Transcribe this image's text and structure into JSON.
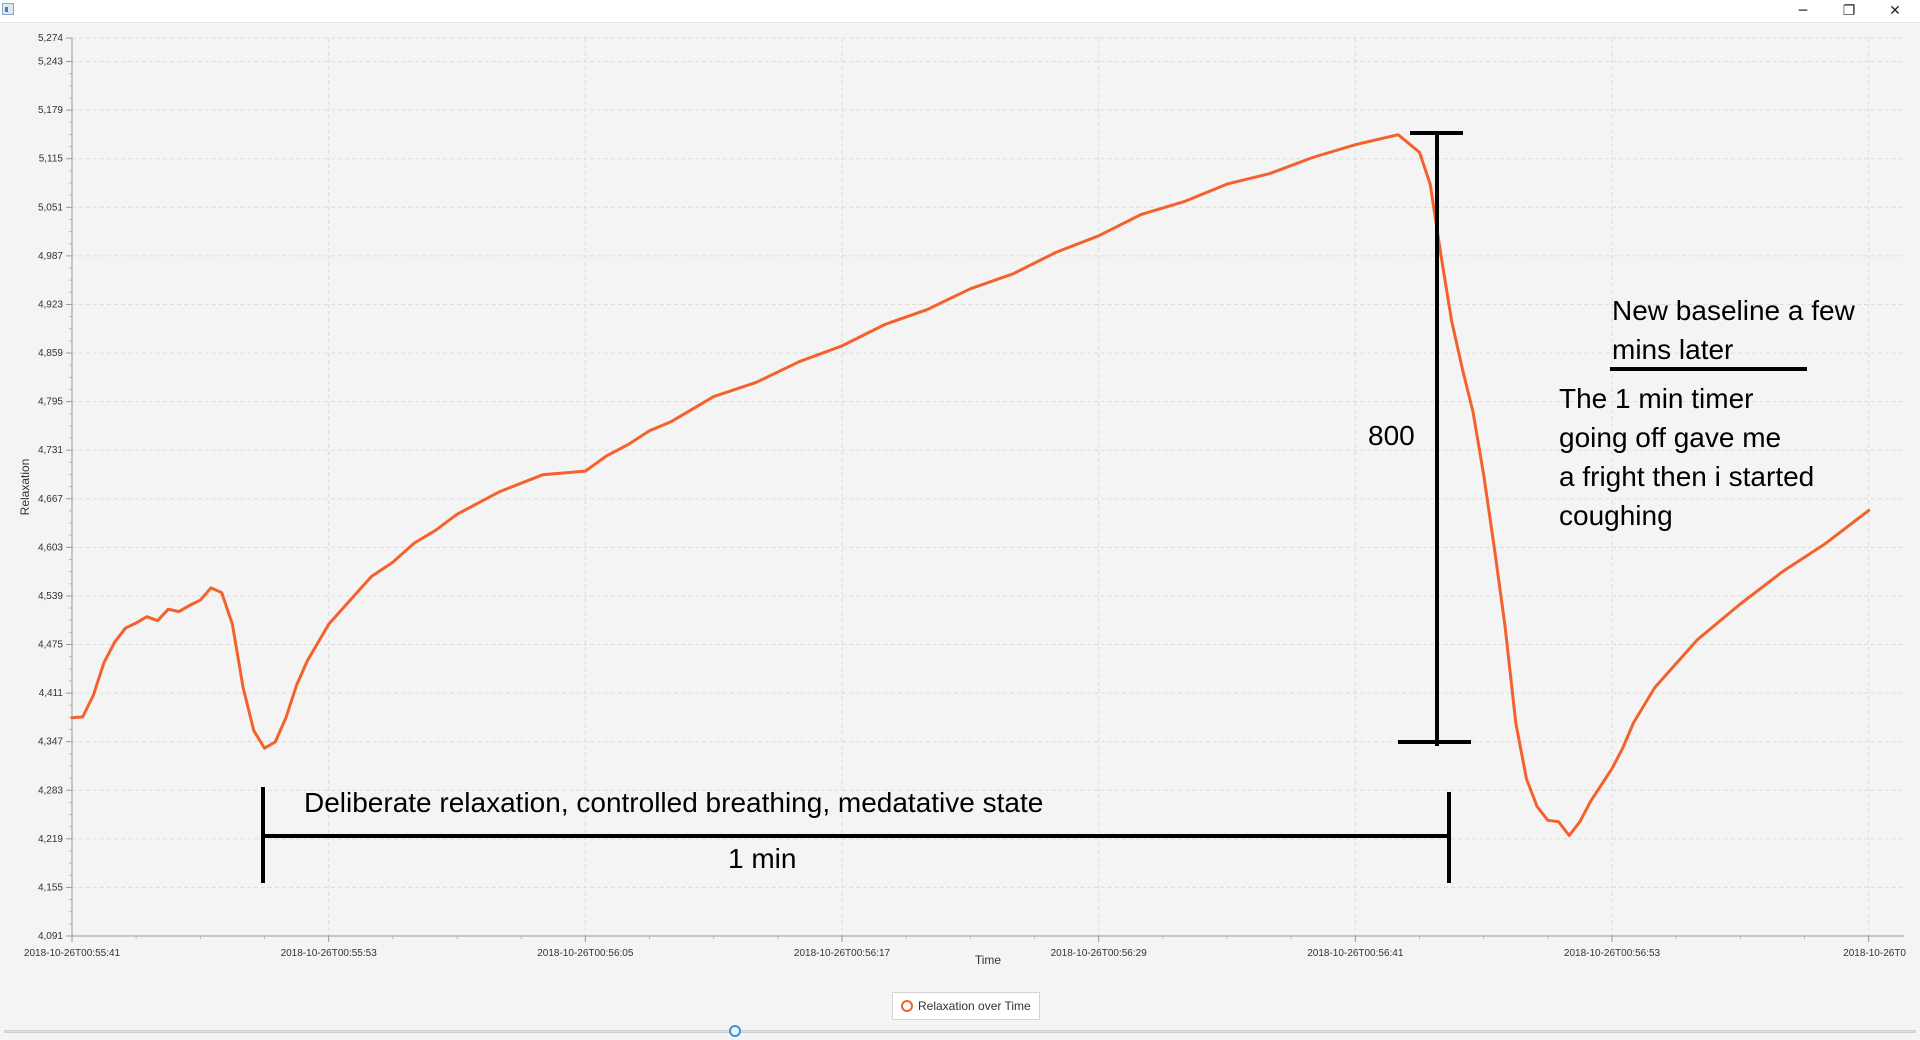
{
  "window": {
    "minimize_glyph": "─",
    "restore_glyph": "❐",
    "close_glyph": "✕"
  },
  "legend": {
    "label": "Relaxation over Time"
  },
  "chart_data": {
    "type": "line",
    "xlabel": "Time",
    "ylabel": "Relaxation",
    "ylim": [
      4091,
      5274
    ],
    "y_ticks": [
      "4,091",
      "4,155",
      "4,219",
      "4,283",
      "4,347",
      "4,411",
      "4,475",
      "4,539",
      "4,603",
      "4,667",
      "4,731",
      "4,795",
      "4,859",
      "4,923",
      "4,987",
      "5,051",
      "5,115",
      "5,179",
      "5,243",
      "5,274"
    ],
    "x_range_seconds": [
      0,
      72
    ],
    "x_ticks": [
      {
        "label": "2018-10-26T00:55:41",
        "t": 0
      },
      {
        "label": "2018-10-26T00:55:53",
        "t": 12
      },
      {
        "label": "2018-10-26T00:56:05",
        "t": 24
      },
      {
        "label": "2018-10-26T00:56:17",
        "t": 36
      },
      {
        "label": "2018-10-26T00:56:29",
        "t": 48
      },
      {
        "label": "2018-10-26T00:56:41",
        "t": 60
      },
      {
        "label": "2018-10-26T00:56:53",
        "t": 72
      },
      {
        "label": "2018-10-26T0",
        "t": 84
      }
    ],
    "grid": true,
    "series": [
      {
        "name": "Relaxation over Time",
        "color": "#f3622d",
        "x": [
          0,
          0.5,
          1,
          1.5,
          2,
          2.5,
          3,
          3.5,
          4,
          4.5,
          5,
          5.5,
          6,
          6.5,
          7,
          7.5,
          8,
          8.5,
          9,
          9.5,
          10,
          10.5,
          11,
          12,
          13,
          14,
          15,
          16,
          17,
          18,
          20,
          22,
          24,
          25,
          26,
          27,
          28,
          30,
          32,
          34,
          36,
          38,
          40,
          42,
          44,
          46,
          48,
          50,
          52,
          54,
          56,
          58,
          60,
          62,
          63,
          63.5,
          64,
          64.5,
          65,
          65.5,
          66,
          66.5,
          67,
          67.5,
          68,
          68.5,
          69,
          69.5,
          70,
          70.5,
          71,
          72,
          72.5,
          73,
          74,
          76,
          78,
          80,
          82,
          84
        ],
        "values": [
          4380,
          4378,
          4410,
          4450,
          4480,
          4495,
          4505,
          4510,
          4508,
          4520,
          4520,
          4525,
          4535,
          4548,
          4545,
          4500,
          4420,
          4360,
          4340,
          4345,
          4380,
          4420,
          4455,
          4500,
          4535,
          4563,
          4585,
          4607,
          4627,
          4645,
          4678,
          4697,
          4705,
          4722,
          4740,
          4755,
          4770,
          4800,
          4822,
          4846,
          4870,
          4895,
          4918,
          4942,
          4965,
          4990,
          5015,
          5040,
          5060,
          5080,
          5097,
          5115,
          5135,
          5145,
          5125,
          5080,
          4990,
          4900,
          4840,
          4780,
          4700,
          4600,
          4500,
          4370,
          4300,
          4260,
          4245,
          4240,
          4225,
          4240,
          4270,
          4310,
          4340,
          4370,
          4420,
          4480,
          4530,
          4570,
          4610,
          4650
        ]
      }
    ],
    "annotations": [
      {
        "id": "eight-hundred",
        "text": "800"
      },
      {
        "id": "relaxation-note",
        "text": "Deliberate relaxation, controlled breathing, medatative state"
      },
      {
        "id": "one-min",
        "text": "1 min"
      },
      {
        "id": "baseline-note",
        "lines": [
          "New baseline a few",
          "mins later"
        ]
      },
      {
        "id": "timer-note",
        "lines": [
          "The 1 min timer",
          "going off gave me",
          "a fright then i started",
          "coughing"
        ]
      }
    ]
  }
}
